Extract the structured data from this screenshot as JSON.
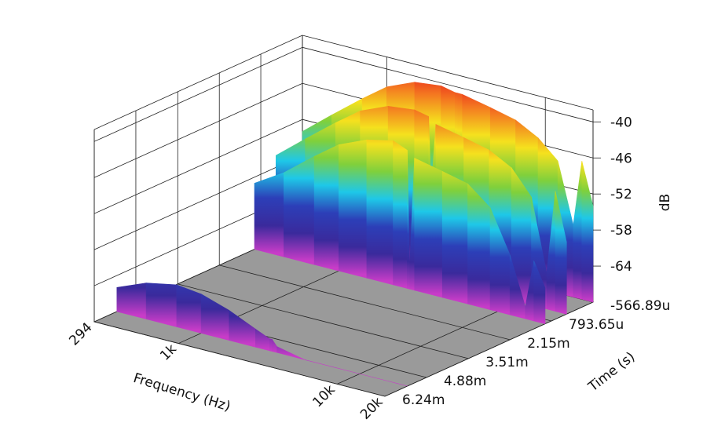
{
  "chart_data": {
    "type": "waterfall3d",
    "xlabel": "Frequency (Hz)",
    "ylabel": "Time (s)",
    "zlabel": "dB",
    "xscale": "log",
    "xlim": [
      294,
      20000
    ],
    "xticks": [
      294,
      {
        "value": 1000,
        "label": "1k"
      },
      {
        "value": 10000,
        "label": "10k"
      },
      {
        "value": 20000,
        "label": "20k"
      }
    ],
    "ylim": [
      -0.00056689,
      0.00624
    ],
    "yticks": [
      {
        "value": -0.00056689,
        "label": "-566.89u"
      },
      {
        "value": 0.00079365,
        "label": "793.65u"
      },
      {
        "value": 0.00215,
        "label": "2.15m"
      },
      {
        "value": 0.00351,
        "label": "3.51m"
      },
      {
        "value": 0.00488,
        "label": "4.88m"
      },
      {
        "value": 0.00624,
        "label": "6.24m"
      }
    ],
    "zlim": [
      -70,
      -38
    ],
    "zticks": [
      -40,
      -46,
      -52,
      -58,
      -64
    ],
    "colors": [
      "#e8141c",
      "#f47a20",
      "#f5e11e",
      "#7fd03c",
      "#1ec8e8",
      "#2c3fb8",
      "#3a2a9c",
      "#c83cc8"
    ],
    "floor_color": "#9a9a9a",
    "x": [
      294,
      450,
      700,
      1000,
      1500,
      2200,
      2700,
      2800,
      3000,
      4500,
      6500,
      9000,
      12000,
      15000,
      17000,
      20000
    ],
    "series": [
      {
        "time": -0.00056689,
        "values": [
          -54,
          -50,
          -46,
          -43,
          -41,
          -40.5,
          -41,
          -41,
          -41,
          -42,
          -43,
          -45,
          -48,
          -58,
          -47,
          -54
        ]
      },
      {
        "time": 0.0003,
        "values": [
          -56,
          -52,
          -48,
          -45,
          -43,
          -42.5,
          -43,
          -55,
          -44,
          -45,
          -46,
          -48,
          -52,
          -64,
          -50,
          -58
        ]
      },
      {
        "time": 0.001,
        "values": [
          -59,
          -56,
          -52,
          -49,
          -47,
          -46,
          -47,
          -66,
          -48,
          -49,
          -50,
          -53,
          -60,
          -68,
          -60,
          -64
        ]
      },
      {
        "time": 0.0055,
        "values": [
          -66,
          -64,
          -63,
          -63.5,
          -65,
          -67,
          -68,
          -68,
          -69,
          -70,
          -70,
          -70,
          -70,
          -70,
          -70,
          -70
        ]
      }
    ]
  }
}
